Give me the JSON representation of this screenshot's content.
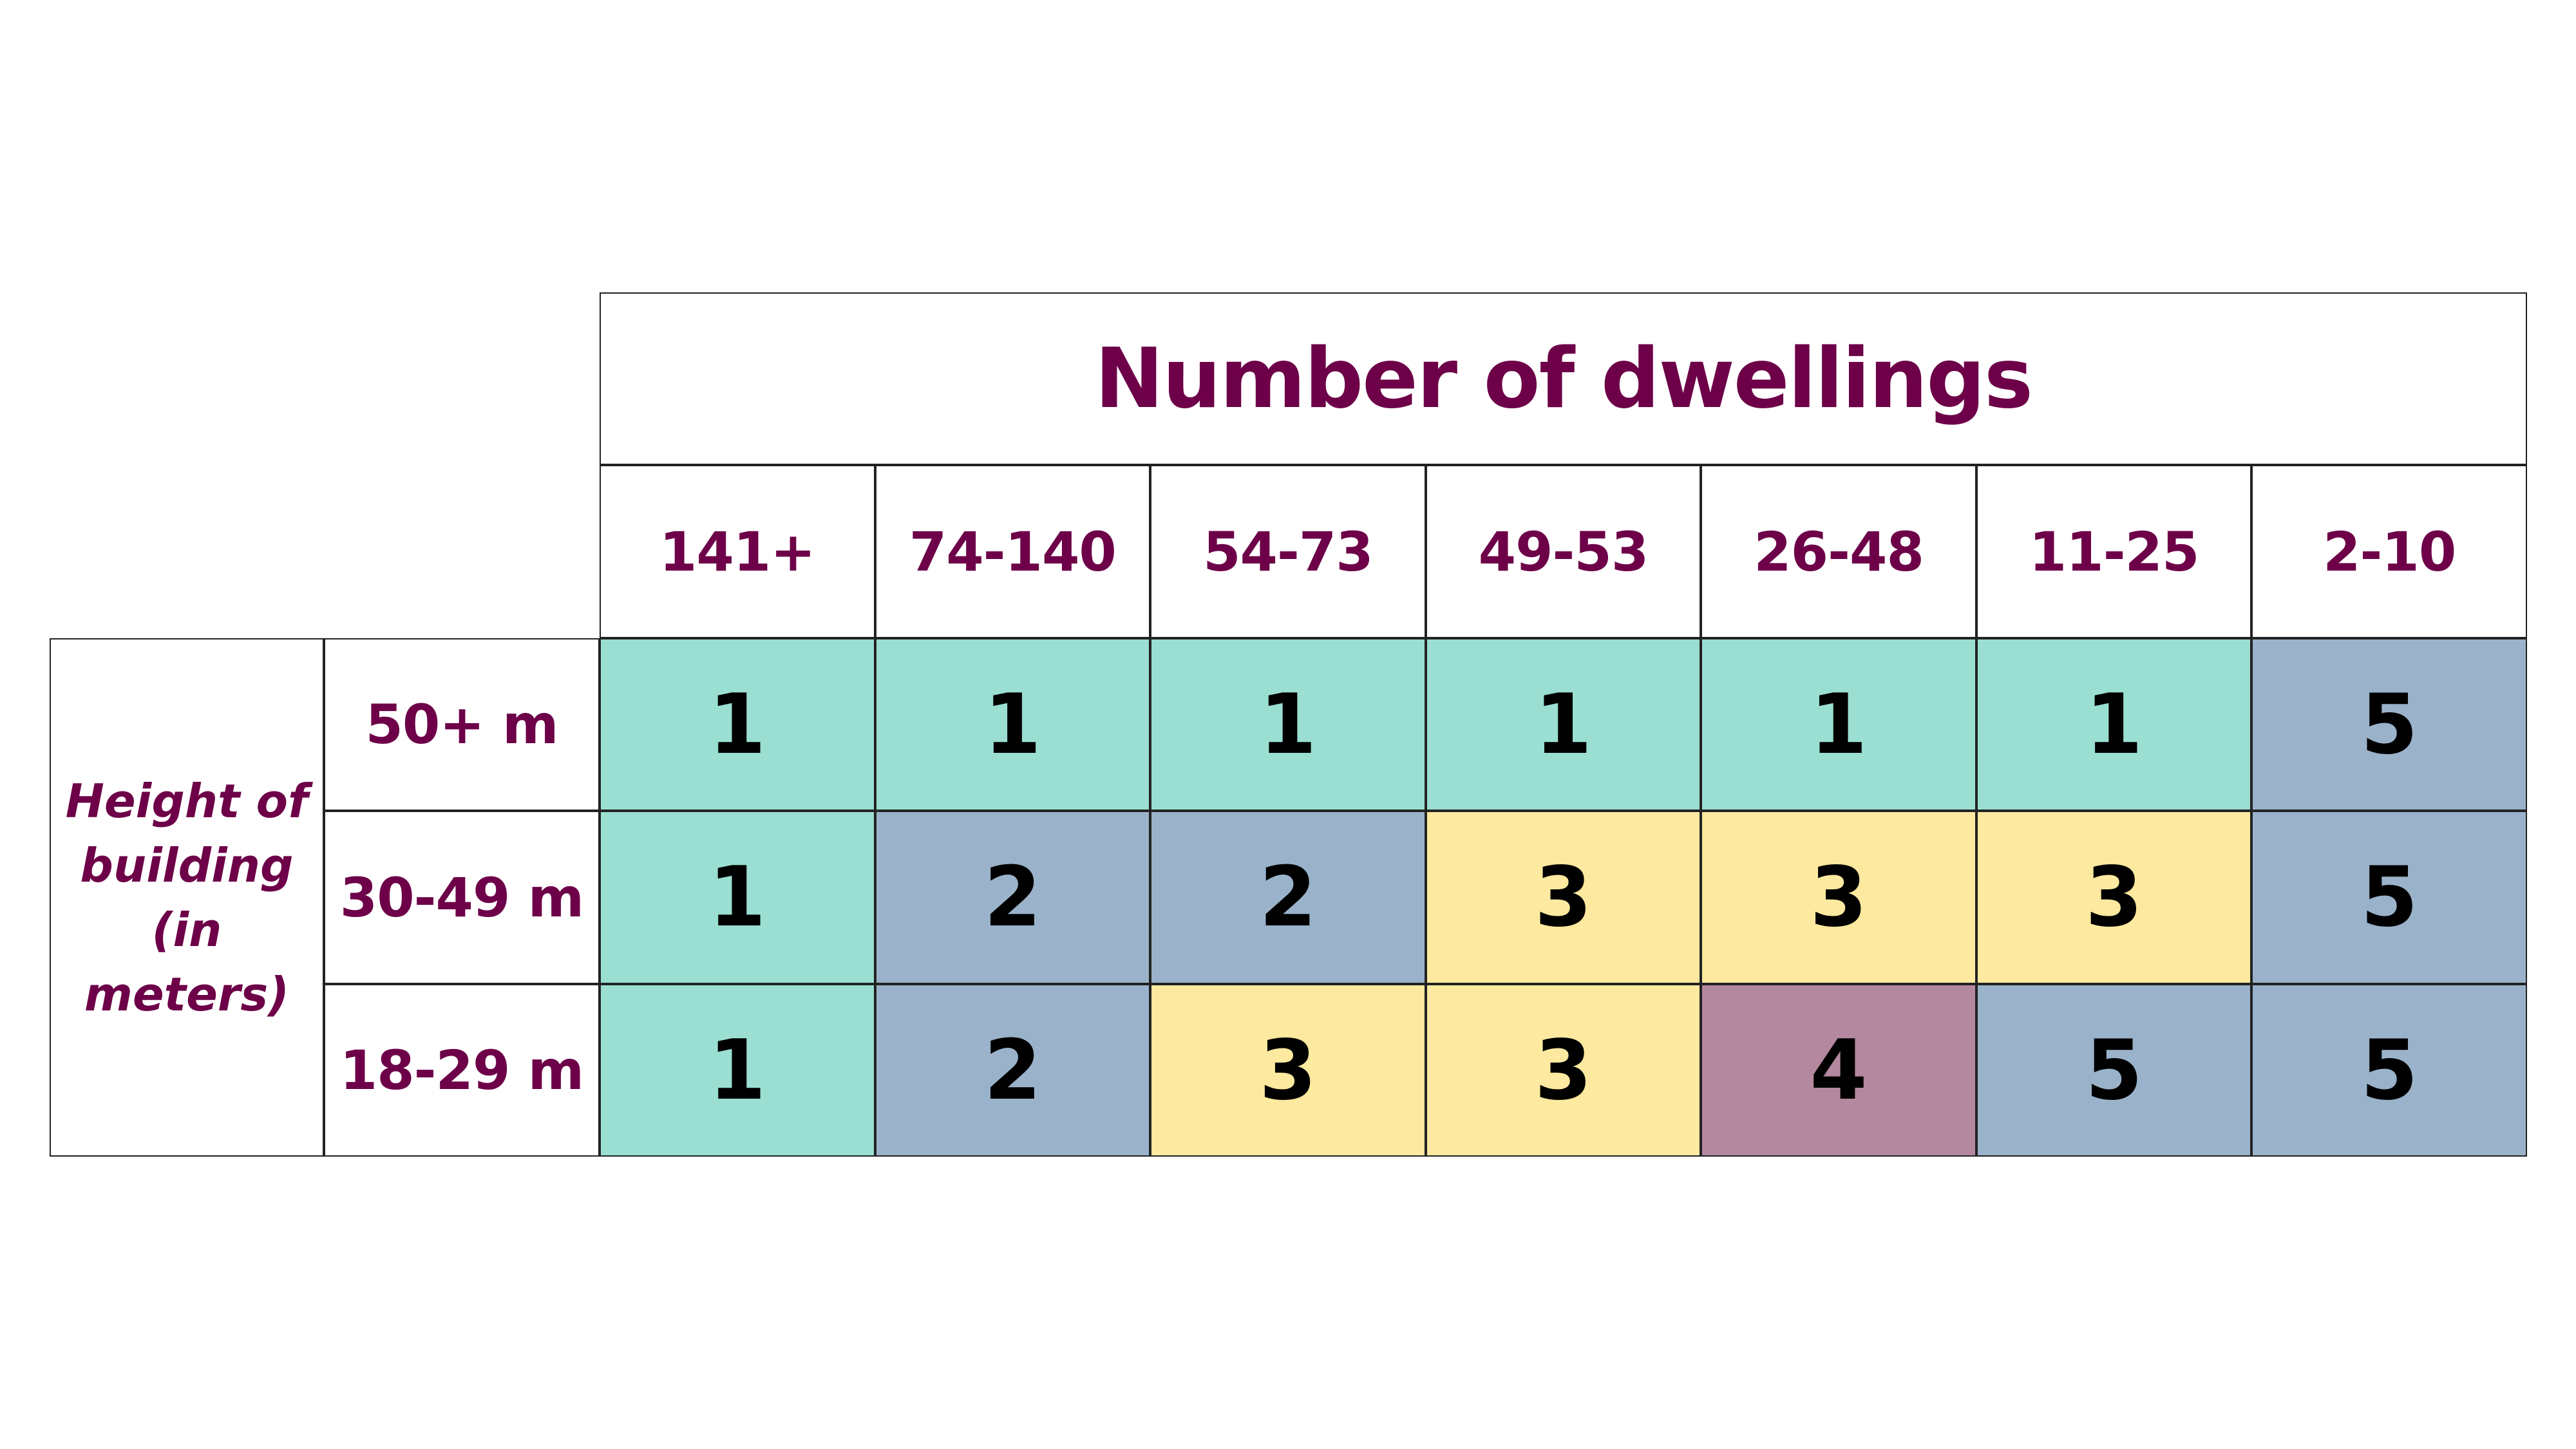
{
  "title": "Number of dwellings",
  "row_group_label": "Height of building (in meters)",
  "row_group_label_lines": [
    "Height of",
    "building",
    "(in",
    "meters)"
  ],
  "columns": [
    "141+",
    "74-140",
    "54-73",
    "49-53",
    "26-48",
    "11-25",
    "2-10"
  ],
  "rows": [
    "50+ m",
    "30-49 m",
    "18-29 m"
  ],
  "colors": {
    "1": "#9adfd1",
    "2": "#9ab3cb",
    "3": "#fde99f",
    "4": "#b4889f",
    "5": "#9ab3cb",
    "text": "#6d0048"
  },
  "chart_data": {
    "type": "heatmap",
    "title": "Number of dwellings",
    "xlabel": "Number of dwellings",
    "ylabel": "Height of building (in meters)",
    "x": [
      "141+",
      "74-140",
      "54-73",
      "49-53",
      "26-48",
      "11-25",
      "2-10"
    ],
    "y": [
      "50+ m",
      "30-49 m",
      "18-29 m"
    ],
    "values": [
      [
        1,
        1,
        1,
        1,
        1,
        1,
        5
      ],
      [
        1,
        2,
        2,
        3,
        3,
        3,
        5
      ],
      [
        1,
        2,
        3,
        3,
        4,
        5,
        5
      ]
    ]
  }
}
